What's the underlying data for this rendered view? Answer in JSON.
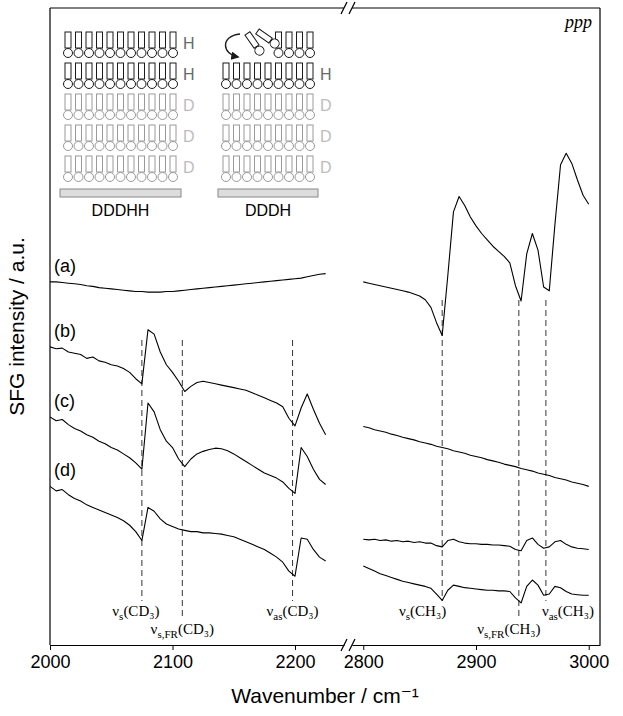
{
  "chart_data": [
    {
      "type": "line",
      "y_label": "SFG intensity / a.u.",
      "x_label": "Wavenumber / cm⁻¹",
      "xlim": [
        2000,
        2240
      ],
      "xticks": [
        2000,
        2100,
        2200
      ],
      "ylim": [
        0,
        100
      ],
      "tick_labels": "x",
      "x": [
        2000,
        2005,
        2010,
        2015,
        2020,
        2025,
        2030,
        2035,
        2040,
        2045,
        2050,
        2055,
        2060,
        2065,
        2070,
        2075,
        2080,
        2085,
        2090,
        2095,
        2100,
        2105,
        2110,
        2115,
        2120,
        2125,
        2130,
        2135,
        2140,
        2145,
        2150,
        2155,
        2160,
        2165,
        2170,
        2175,
        2180,
        2185,
        2190,
        2195,
        2200,
        2205,
        2210,
        2215,
        2220,
        2225
      ],
      "series": [
        {
          "name": "(a)",
          "color": "#000000",
          "values": [
            57.0,
            57.0,
            56.9,
            56.8,
            56.7,
            56.6,
            56.4,
            56.3,
            56.1,
            56.0,
            55.9,
            55.8,
            55.7,
            55.6,
            55.5,
            55.5,
            55.4,
            55.4,
            55.4,
            55.5,
            55.5,
            55.6,
            55.7,
            55.8,
            55.9,
            56.0,
            56.1,
            56.2,
            56.3,
            56.4,
            56.5,
            56.6,
            56.7,
            56.8,
            56.9,
            57.0,
            57.1,
            57.2,
            57.3,
            57.4,
            57.5,
            57.6,
            57.8,
            58.0,
            58.2,
            58.3
          ]
        },
        {
          "name": "(b)",
          "color": "#000000",
          "values": [
            46.8,
            46.5,
            46.6,
            46.0,
            45.8,
            45.6,
            45.0,
            45.2,
            44.6,
            44.4,
            44.0,
            43.8,
            43.4,
            42.8,
            41.8,
            41.0,
            49.5,
            48.8,
            46.0,
            44.0,
            42.8,
            41.4,
            39.8,
            40.6,
            41.2,
            41.4,
            41.2,
            41.0,
            40.8,
            40.6,
            40.4,
            40.2,
            40.0,
            39.6,
            39.2,
            38.8,
            38.4,
            38.0,
            37.4,
            35.6,
            34.4,
            37.2,
            39.4,
            37.0,
            34.8,
            33.0
          ]
        },
        {
          "name": "(c)",
          "color": "#000000",
          "values": [
            35.8,
            35.2,
            35.4,
            34.6,
            34.0,
            33.6,
            33.0,
            32.6,
            32.0,
            31.6,
            31.0,
            30.6,
            30.0,
            29.4,
            28.6,
            27.6,
            38.0,
            36.6,
            33.8,
            32.0,
            31.0,
            29.2,
            28.0,
            29.2,
            30.0,
            30.4,
            30.7,
            30.9,
            30.8,
            30.5,
            30.0,
            29.4,
            28.8,
            28.2,
            27.6,
            27.0,
            26.6,
            26.2,
            25.6,
            24.6,
            23.8,
            31.0,
            29.6,
            27.6,
            26.0,
            25.2
          ]
        },
        {
          "name": "(d)",
          "color": "#000000",
          "values": [
            24.9,
            24.2,
            24.4,
            23.6,
            23.0,
            22.6,
            22.0,
            21.6,
            21.2,
            20.8,
            20.4,
            20.0,
            19.5,
            18.8,
            17.8,
            16.4,
            21.6,
            21.0,
            19.8,
            19.0,
            18.6,
            18.2,
            18.0,
            17.8,
            17.8,
            17.6,
            17.6,
            17.5,
            17.4,
            17.2,
            17.0,
            16.6,
            16.2,
            15.8,
            15.4,
            15.0,
            14.4,
            13.8,
            13.0,
            11.6,
            10.8,
            16.8,
            16.6,
            15.0,
            13.8,
            13.2
          ]
        }
      ],
      "annotations": [
        {
          "symbol": "ν",
          "subscript": "s",
          "group": "(CD₃)",
          "x": 2075
        },
        {
          "symbol": "ν",
          "subscript": "s,FR",
          "group": "(CD₃)",
          "x": 2108
        },
        {
          "symbol": "ν",
          "subscript": "as",
          "group": "(CD₃)",
          "x": 2198
        }
      ],
      "inset": {
        "left_layers": [
          {
            "label": "H",
            "color": "#1a1a1a"
          },
          {
            "label": "H",
            "color": "#1a1a1a"
          },
          {
            "label": "D",
            "color": "#9a9a9a"
          },
          {
            "label": "D",
            "color": "#9a9a9a"
          },
          {
            "label": "D",
            "color": "#9a9a9a"
          }
        ],
        "left_caption": "DDDHH",
        "right_layers": [
          {
            "label": "H",
            "color": "#1a1a1a"
          },
          {
            "label": "D",
            "color": "#9a9a9a"
          },
          {
            "label": "D",
            "color": "#9a9a9a"
          },
          {
            "label": "D",
            "color": "#9a9a9a"
          }
        ],
        "right_caption": "DDDH"
      }
    },
    {
      "type": "line",
      "title": "ppp",
      "xlim": [
        2790,
        3010
      ],
      "xticks": [
        2800,
        2900,
        3000
      ],
      "ylim": [
        0,
        100
      ],
      "tick_labels": "x",
      "x": [
        2800,
        2805,
        2810,
        2815,
        2820,
        2825,
        2830,
        2835,
        2840,
        2845,
        2850,
        2855,
        2860,
        2865,
        2870,
        2875,
        2880,
        2885,
        2890,
        2895,
        2900,
        2905,
        2910,
        2915,
        2920,
        2925,
        2930,
        2935,
        2940,
        2945,
        2950,
        2955,
        2960,
        2965,
        2970,
        2975,
        2980,
        2985,
        2990,
        2995,
        3000
      ],
      "series": [
        {
          "color": "#000000",
          "values": [
            57.0,
            56.8,
            56.6,
            56.4,
            56.2,
            56.0,
            55.8,
            55.6,
            55.4,
            55.1,
            54.8,
            54.2,
            53.0,
            50.6,
            48.6,
            58.0,
            68.0,
            70.4,
            69.0,
            67.2,
            65.8,
            64.6,
            63.6,
            62.6,
            61.8,
            61.0,
            60.0,
            56.4,
            54.0,
            61.4,
            64.6,
            62.0,
            56.2,
            55.6,
            66.0,
            75.4,
            77.2,
            75.6,
            73.0,
            70.6,
            69.2
          ]
        },
        {
          "color": "#000000",
          "values": [
            34.3,
            34.1,
            33.8,
            33.6,
            33.4,
            33.1,
            32.9,
            32.6,
            32.4,
            32.2,
            31.9,
            31.7,
            31.5,
            31.2,
            31.0,
            30.8,
            30.5,
            30.3,
            30.1,
            29.8,
            29.6,
            29.4,
            29.1,
            28.9,
            28.7,
            28.4,
            28.2,
            28.0,
            27.7,
            27.5,
            27.3,
            27.0,
            26.8,
            26.6,
            26.3,
            26.1,
            25.9,
            25.6,
            25.4,
            25.2,
            24.9
          ]
        },
        {
          "color": "#000000",
          "values": [
            16.6,
            16.5,
            16.6,
            16.4,
            16.5,
            16.3,
            16.4,
            16.2,
            16.3,
            16.1,
            16.2,
            16.0,
            16.0,
            15.6,
            15.4,
            16.4,
            16.6,
            16.2,
            16.0,
            15.9,
            15.9,
            15.8,
            15.8,
            15.7,
            15.7,
            15.6,
            15.5,
            15.0,
            14.8,
            16.4,
            16.8,
            15.8,
            15.2,
            15.4,
            16.2,
            16.4,
            15.8,
            15.4,
            15.2,
            15.1,
            15.0
          ]
        },
        {
          "color": "#000000",
          "values": [
            12.4,
            12.0,
            11.6,
            11.2,
            10.9,
            10.6,
            10.3,
            10.0,
            9.8,
            9.6,
            9.4,
            9.2,
            8.9,
            8.0,
            7.0,
            8.6,
            9.4,
            9.2,
            9.0,
            8.9,
            8.8,
            8.7,
            8.6,
            8.6,
            8.5,
            8.5,
            8.4,
            7.4,
            6.6,
            9.2,
            10.2,
            9.4,
            7.8,
            8.0,
            9.2,
            9.0,
            8.4,
            8.0,
            7.9,
            7.8,
            7.8
          ]
        }
      ],
      "annotations": [
        {
          "symbol": "ν",
          "subscript": "s",
          "group": "(CH₃)",
          "x": 2870
        },
        {
          "symbol": "ν",
          "subscript": "s,FR",
          "group": "(CH₃)",
          "x": 2938
        },
        {
          "symbol": "ν",
          "subscript": "as",
          "group": "(CH₃)",
          "x": 2962
        }
      ]
    }
  ]
}
